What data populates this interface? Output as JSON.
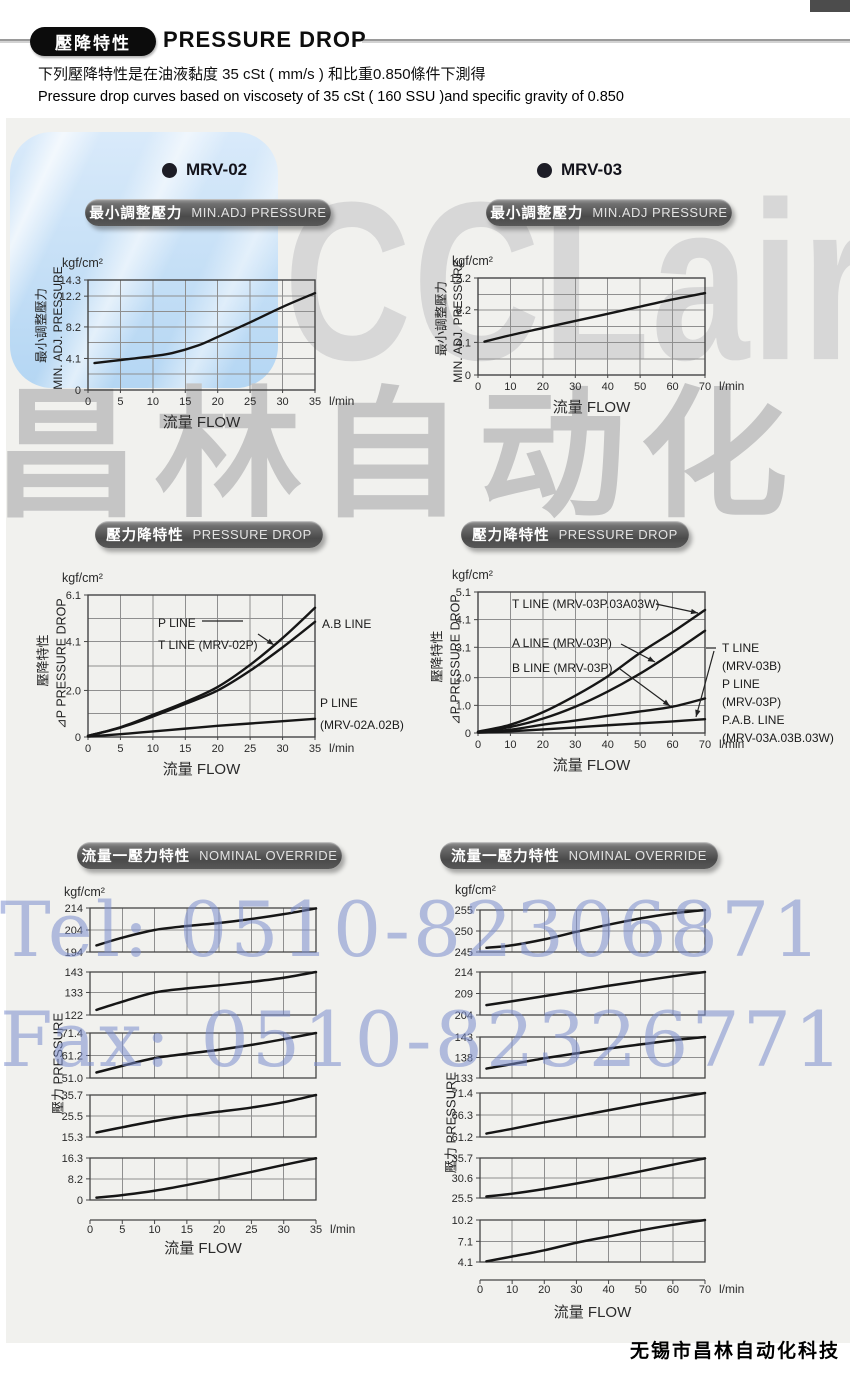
{
  "header": {
    "badge_zh": "壓降特性",
    "title": "PRESSURE DROP",
    "subtitle_zh": "下列壓降特性是在油液黏度 35 cSt ( mm/s ) 和比重0.850條件下測得",
    "subtitle_en": "Pressure drop curves based on viscosety of 35 cSt ( 160 SSU )and specific gravity of 0.850"
  },
  "models": [
    "MRV-02",
    "MRV-03"
  ],
  "badges": {
    "min_adj_zh": "最小調整壓力",
    "min_adj_en": "MIN.ADJ PRESSURE",
    "pdrop_zh": "壓力降特性",
    "pdrop_en": "PRESSURE DROP",
    "nominal_zh": "流量一壓力特性",
    "nominal_en": "NOMINAL OVERRIDE"
  },
  "watermarks": {
    "logo": "CCLair",
    "company": "昌林自动化",
    "tel": "Tel: 0510-82306871",
    "fax": "Fax: 0510-82326771"
  },
  "footer": "无锡市昌林自动化科技",
  "chart_data": [
    {
      "id": "mrv02-min-adj",
      "type": "line",
      "model": "MRV-02",
      "unit": "kgf/cm²",
      "xlabel": "流量 FLOW",
      "x_unit": "l/min",
      "xlim": [
        0,
        35
      ],
      "x_ticks": [
        0,
        5,
        10,
        15,
        20,
        25,
        30,
        35
      ],
      "ylim": [
        0,
        14.3
      ],
      "y_tick_labels": [
        "14.3",
        "12.2",
        "8.2",
        "4.1",
        "0"
      ],
      "y_tick_values": [
        14.3,
        12.2,
        8.2,
        4.1,
        0
      ],
      "y_grid": [
        2.05,
        4.1,
        6.15,
        8.2,
        10.2,
        12.2
      ],
      "yaxis_zh": "最小調整壓力",
      "yaxis_en": "MIN. ADJ. PRESSURE",
      "series": [
        {
          "name": "MIN.ADJ PRESSURE",
          "points": [
            [
              1,
              3.5
            ],
            [
              5,
              3.9
            ],
            [
              10,
              4.4
            ],
            [
              13,
              4.8
            ],
            [
              17,
              5.8
            ],
            [
              20,
              6.9
            ],
            [
              25,
              8.8
            ],
            [
              30,
              10.8
            ],
            [
              35,
              12.6
            ]
          ]
        }
      ],
      "annotations": []
    },
    {
      "id": "mrv03-min-adj",
      "type": "line",
      "model": "MRV-03",
      "unit": "kgf/cm²",
      "xlabel": "流量 FLOW",
      "x_unit": "l/min",
      "xlim": [
        0,
        70
      ],
      "x_ticks": [
        0,
        10,
        20,
        30,
        40,
        50,
        60,
        70
      ],
      "ylim": [
        0,
        12.2
      ],
      "y_tick_labels": [
        "12.2",
        "8.2",
        "4.1",
        "0"
      ],
      "y_tick_values": [
        12.2,
        8.2,
        4.1,
        0
      ],
      "y_grid": [
        2.03,
        4.1,
        6.1,
        8.2,
        10.15
      ],
      "yaxis_zh": "最小調整壓力",
      "yaxis_en": "MIN. ADJ. PRESSURE",
      "series": [
        {
          "name": "MIN.ADJ PRESSURE",
          "points": [
            [
              2,
              4.2
            ],
            [
              10,
              5.0
            ],
            [
              20,
              5.9
            ],
            [
              30,
              6.8
            ],
            [
              40,
              7.7
            ],
            [
              50,
              8.6
            ],
            [
              60,
              9.5
            ],
            [
              70,
              10.3
            ]
          ]
        }
      ],
      "annotations": []
    },
    {
      "id": "mrv02-pdrop",
      "type": "line",
      "model": "MRV-02",
      "unit": "kgf/cm²",
      "xlabel": "流量 FLOW",
      "x_unit": "l/min",
      "xlim": [
        0,
        35
      ],
      "x_ticks": [
        0,
        5,
        10,
        15,
        20,
        25,
        30,
        35
      ],
      "ylim": [
        0,
        6.1
      ],
      "y_tick_labels": [
        "6.1",
        "4.1",
        "2.0",
        "0"
      ],
      "y_tick_values": [
        6.1,
        4.1,
        2.0,
        0
      ],
      "y_grid": [
        1.0,
        2.0,
        3.05,
        4.1,
        5.1
      ],
      "yaxis_zh": "壓降特性",
      "yaxis_en": "⊿P PRESSURE DROP",
      "series": [
        {
          "name": "P LINE / T LINE (MRV-02P)",
          "points": [
            [
              0,
              0.05
            ],
            [
              5,
              0.42
            ],
            [
              10,
              0.95
            ],
            [
              15,
              1.5
            ],
            [
              20,
              2.15
            ],
            [
              25,
              3.1
            ],
            [
              30,
              4.25
            ],
            [
              35,
              5.55
            ]
          ]
        },
        {
          "name": "A.B LINE",
          "points": [
            [
              0,
              0.05
            ],
            [
              5,
              0.4
            ],
            [
              10,
              0.88
            ],
            [
              15,
              1.42
            ],
            [
              20,
              2.0
            ],
            [
              25,
              2.85
            ],
            [
              30,
              3.85
            ],
            [
              35,
              4.95
            ]
          ]
        },
        {
          "name": "P LINE (MRV-02A.02B)",
          "points": [
            [
              0,
              0.02
            ],
            [
              5,
              0.12
            ],
            [
              10,
              0.24
            ],
            [
              15,
              0.36
            ],
            [
              20,
              0.48
            ],
            [
              25,
              0.58
            ],
            [
              30,
              0.68
            ],
            [
              35,
              0.78
            ]
          ]
        }
      ],
      "annotations": [
        "P LINE",
        "T LINE (MRV-02P)",
        "A.B LINE",
        "P LINE",
        "(MRV-02A.02B)"
      ]
    },
    {
      "id": "mrv03-pdrop",
      "type": "line",
      "model": "MRV-03",
      "unit": "kgf/cm²",
      "xlabel": "流量 FLOW",
      "x_unit": "l/min",
      "xlim": [
        0,
        70
      ],
      "x_ticks": [
        0,
        10,
        20,
        30,
        40,
        50,
        60,
        70
      ],
      "ylim": [
        0,
        5.1
      ],
      "y_tick_labels": [
        "5.1",
        "4.1",
        "3.1",
        "2.0",
        "1.0",
        "0"
      ],
      "y_tick_values": [
        5.1,
        4.1,
        3.1,
        2.0,
        1.0,
        0
      ],
      "y_grid": [
        1.0,
        2.0,
        3.1,
        4.1
      ],
      "yaxis_zh": "壓降特性",
      "yaxis_en": "⊿P PRESSURE DROP",
      "series": [
        {
          "name": "T LINE (MRV-03P.03A03W)",
          "points": [
            [
              0,
              0.05
            ],
            [
              10,
              0.3
            ],
            [
              20,
              0.75
            ],
            [
              30,
              1.35
            ],
            [
              40,
              2.05
            ],
            [
              50,
              2.9
            ],
            [
              60,
              3.65
            ],
            [
              70,
              4.45
            ]
          ]
        },
        {
          "name": "A LINE (MRV-03P)",
          "points": [
            [
              0,
              0.03
            ],
            [
              10,
              0.22
            ],
            [
              20,
              0.52
            ],
            [
              30,
              0.95
            ],
            [
              40,
              1.5
            ],
            [
              50,
              2.15
            ],
            [
              60,
              2.9
            ],
            [
              70,
              3.7
            ]
          ]
        },
        {
          "name": "B LINE (MRV-03P) / T LINE (MRV-03B) / P LINE (MRV-03P)",
          "points": [
            [
              0,
              0.02
            ],
            [
              10,
              0.12
            ],
            [
              20,
              0.3
            ],
            [
              30,
              0.45
            ],
            [
              40,
              0.62
            ],
            [
              50,
              0.78
            ],
            [
              60,
              0.95
            ],
            [
              70,
              1.25
            ]
          ]
        },
        {
          "name": "P.A.B. LINE (MRV-03A.03B.03W)",
          "points": [
            [
              0,
              0.01
            ],
            [
              10,
              0.06
            ],
            [
              20,
              0.13
            ],
            [
              30,
              0.2
            ],
            [
              40,
              0.28
            ],
            [
              50,
              0.35
            ],
            [
              60,
              0.42
            ],
            [
              70,
              0.5
            ]
          ]
        }
      ],
      "annotations": [
        "T LINE (MRV-03P.03A03W)",
        "A LINE (MRV-03P)",
        "B LINE (MRV-03P)",
        "T LINE",
        "(MRV-03B)",
        "P LINE",
        "(MRV-03P)",
        "P.A.B. LINE",
        "(MRV-03A.03B.03W)"
      ]
    },
    {
      "id": "mrv02-nominal",
      "type": "line-multiband",
      "model": "MRV-02",
      "unit": "kgf/cm²",
      "xlabel": "流量 FLOW",
      "x_unit": "l/min",
      "xlim": [
        0,
        35
      ],
      "x_ticks": [
        0,
        5,
        10,
        15,
        20,
        25,
        30,
        35
      ],
      "yaxis": "壓力 PRESSURE",
      "bands": [
        {
          "y_tick_labels": [
            "214",
            "204",
            "194"
          ],
          "ylim": [
            194,
            214
          ],
          "points": [
            [
              1,
              197
            ],
            [
              5,
              200.5
            ],
            [
              10,
              204
            ],
            [
              15,
              205.8
            ],
            [
              20,
              207.2
            ],
            [
              25,
              209
            ],
            [
              30,
              211.2
            ],
            [
              35,
              213.8
            ]
          ]
        },
        {
          "y_tick_labels": [
            "143",
            "133",
            "122"
          ],
          "ylim": [
            122,
            143
          ],
          "points": [
            [
              1,
              124.5
            ],
            [
              5,
              128.5
            ],
            [
              10,
              133
            ],
            [
              15,
              135
            ],
            [
              20,
              136.5
            ],
            [
              25,
              138.2
            ],
            [
              30,
              140.2
            ],
            [
              35,
              143
            ]
          ]
        },
        {
          "y_tick_labels": [
            "71.4",
            "61.2",
            "51.0"
          ],
          "ylim": [
            51,
            71.4
          ],
          "points": [
            [
              1,
              53.5
            ],
            [
              5,
              56.5
            ],
            [
              10,
              60
            ],
            [
              15,
              62
            ],
            [
              20,
              63.8
            ],
            [
              25,
              66
            ],
            [
              30,
              68.6
            ],
            [
              35,
              71.4
            ]
          ]
        },
        {
          "y_tick_labels": [
            "35.7",
            "25.5",
            "15.3"
          ],
          "ylim": [
            15.3,
            35.7
          ],
          "points": [
            [
              1,
              17.5
            ],
            [
              5,
              20
            ],
            [
              10,
              23
            ],
            [
              15,
              25.6
            ],
            [
              20,
              27.6
            ],
            [
              25,
              29.6
            ],
            [
              30,
              32.2
            ],
            [
              35,
              35.7
            ]
          ]
        },
        {
          "y_tick_labels": [
            "16.3",
            "8.2",
            "0"
          ],
          "ylim": [
            0,
            16.3
          ],
          "points": [
            [
              1,
              0.9
            ],
            [
              5,
              1.9
            ],
            [
              10,
              3.6
            ],
            [
              15,
              5.8
            ],
            [
              20,
              8.3
            ],
            [
              25,
              10.9
            ],
            [
              30,
              13.6
            ],
            [
              35,
              16.2
            ]
          ]
        }
      ]
    },
    {
      "id": "mrv03-nominal",
      "type": "line-multiband",
      "model": "MRV-03",
      "unit": "kgf/cm²",
      "xlabel": "流量 FLOW",
      "x_unit": "l/min",
      "xlim": [
        0,
        70
      ],
      "x_ticks": [
        0,
        10,
        20,
        30,
        40,
        50,
        60,
        70
      ],
      "yaxis": "壓力 PRESSURE",
      "bands": [
        {
          "y_tick_labels": [
            "255",
            "250",
            "245"
          ],
          "ylim": [
            245,
            255
          ],
          "points": [
            [
              2,
              246
            ],
            [
              10,
              246.6
            ],
            [
              20,
              248
            ],
            [
              30,
              249.8
            ],
            [
              40,
              251.5
            ],
            [
              50,
              253
            ],
            [
              60,
              254.2
            ],
            [
              70,
              255
            ]
          ]
        },
        {
          "y_tick_labels": [
            "214",
            "209",
            "204"
          ],
          "ylim": [
            204,
            214
          ],
          "points": [
            [
              2,
              206.3
            ],
            [
              10,
              207.2
            ],
            [
              20,
              208.4
            ],
            [
              30,
              209.6
            ],
            [
              40,
              210.8
            ],
            [
              50,
              211.9
            ],
            [
              60,
              213
            ],
            [
              70,
              214
            ]
          ]
        },
        {
          "y_tick_labels": [
            "143",
            "138",
            "133"
          ],
          "ylim": [
            133,
            143
          ],
          "points": [
            [
              2,
              135.3
            ],
            [
              10,
              136.4
            ],
            [
              20,
              137.8
            ],
            [
              30,
              139
            ],
            [
              40,
              140.2
            ],
            [
              50,
              141.2
            ],
            [
              60,
              142.2
            ],
            [
              70,
              143
            ]
          ]
        },
        {
          "y_tick_labels": [
            "71.4",
            "66.3",
            "61.2"
          ],
          "ylim": [
            61.2,
            71.4
          ],
          "points": [
            [
              2,
              62
            ],
            [
              10,
              63.1
            ],
            [
              20,
              64.6
            ],
            [
              30,
              66
            ],
            [
              40,
              67.4
            ],
            [
              50,
              68.8
            ],
            [
              60,
              70.1
            ],
            [
              70,
              71.4
            ]
          ]
        },
        {
          "y_tick_labels": [
            "35.7",
            "30.6",
            "25.5"
          ],
          "ylim": [
            25.5,
            35.7
          ],
          "points": [
            [
              2,
              25.9
            ],
            [
              10,
              26.6
            ],
            [
              20,
              27.8
            ],
            [
              30,
              29.2
            ],
            [
              40,
              30.7
            ],
            [
              50,
              32.3
            ],
            [
              60,
              34
            ],
            [
              70,
              35.6
            ]
          ]
        },
        {
          "y_tick_labels": [
            "10.2",
            "7.1",
            "4.1"
          ],
          "ylim": [
            4.1,
            10.2
          ],
          "points": [
            [
              2,
              4.2
            ],
            [
              10,
              4.9
            ],
            [
              20,
              5.8
            ],
            [
              30,
              6.9
            ],
            [
              40,
              7.8
            ],
            [
              50,
              8.7
            ],
            [
              60,
              9.5
            ],
            [
              70,
              10.2
            ]
          ]
        }
      ]
    }
  ]
}
